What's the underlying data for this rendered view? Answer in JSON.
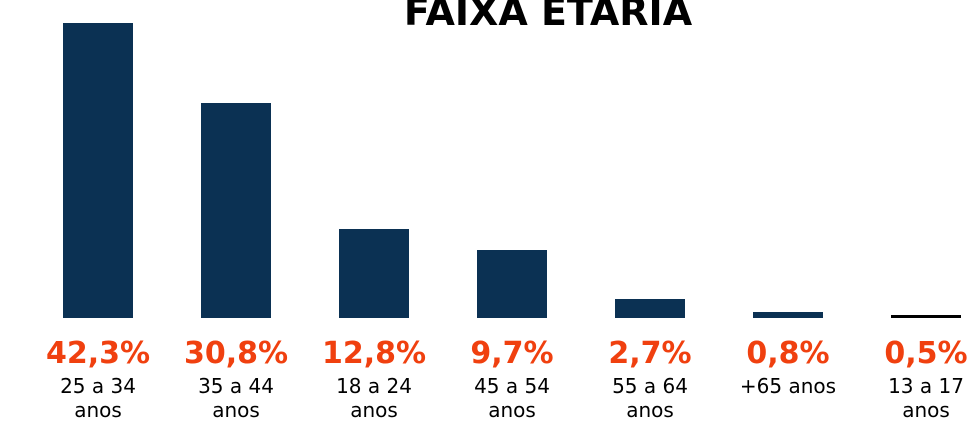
{
  "chart_data": {
    "type": "bar",
    "title": "FAIXA ETARIA",
    "categories": [
      "25 a 34 anos",
      "35 a 44 anos",
      "18 a 24 anos",
      "45 a 54 anos",
      "55 a 64 anos",
      "+65 anos",
      "13 a 17 anos"
    ],
    "values": [
      42.3,
      30.8,
      12.8,
      9.7,
      2.7,
      0.8,
      0.5
    ],
    "value_labels": [
      "42,3%",
      "30,8%",
      "12,8%",
      "9,7%",
      "2,7%",
      "0,8%",
      "0,5%"
    ],
    "colors": [
      "#0b3153",
      "#0b3153",
      "#0b3153",
      "#0b3153",
      "#0b3153",
      "#0b3153",
      "#000000"
    ],
    "label_color": "#f0400f"
  }
}
